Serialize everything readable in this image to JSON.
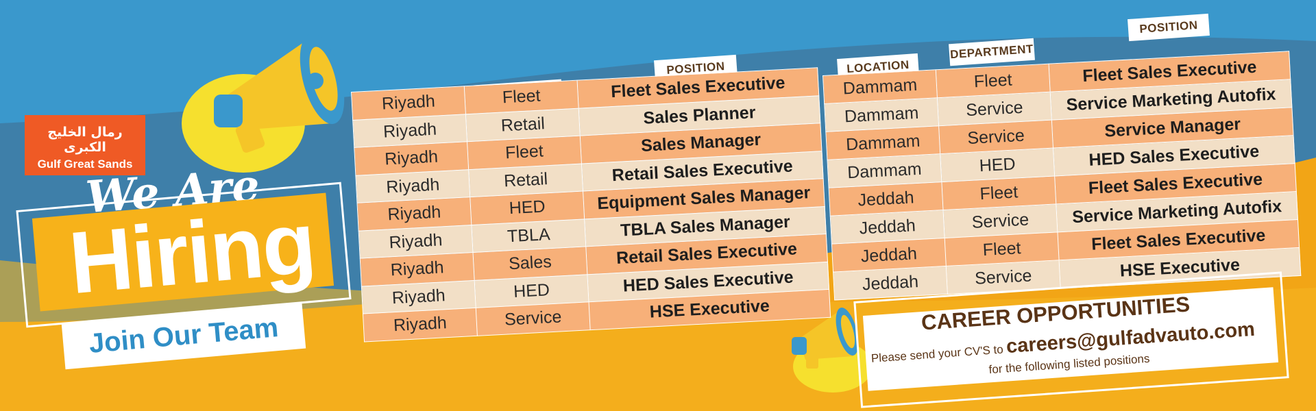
{
  "brand": {
    "logo_arabic": "رمال الخليج الكبرى",
    "logo_english": "Gulf Great Sands"
  },
  "headline": {
    "we_are": "We Are",
    "hiring": "Hiring",
    "join": "Join Our Team"
  },
  "table_headers": {
    "location": "LOCATION",
    "department": "DEPARTMENT",
    "position": "POSITION"
  },
  "table_left": [
    {
      "location": "Riyadh",
      "department": "Fleet",
      "position": "Fleet Sales Executive"
    },
    {
      "location": "Riyadh",
      "department": "Retail",
      "position": "Sales Planner"
    },
    {
      "location": "Riyadh",
      "department": "Fleet",
      "position": "Sales Manager"
    },
    {
      "location": "Riyadh",
      "department": "Retail",
      "position": "Retail Sales Executive"
    },
    {
      "location": "Riyadh",
      "department": "HED",
      "position": "Equipment Sales Manager"
    },
    {
      "location": "Riyadh",
      "department": "TBLA",
      "position": "TBLA Sales Manager"
    },
    {
      "location": "Riyadh",
      "department": "Sales",
      "position": "Retail Sales Executive"
    },
    {
      "location": "Riyadh",
      "department": "HED",
      "position": "HED Sales Executive"
    },
    {
      "location": "Riyadh",
      "department": "Service",
      "position": "HSE Executive"
    }
  ],
  "table_right": [
    {
      "location": "Dammam",
      "department": "Fleet",
      "position": "Fleet Sales Executive"
    },
    {
      "location": "Dammam",
      "department": "Service",
      "position": "Service Marketing Autofix"
    },
    {
      "location": "Dammam",
      "department": "Service",
      "position": "Service Manager"
    },
    {
      "location": "Dammam",
      "department": "HED",
      "position": "HED Sales Executive"
    },
    {
      "location": "Jeddah",
      "department": "Fleet",
      "position": "Fleet Sales Executive"
    },
    {
      "location": "Jeddah",
      "department": "Service",
      "position": "Service Marketing Autofix"
    },
    {
      "location": "Jeddah",
      "department": "Fleet",
      "position": "Fleet Sales Executive"
    },
    {
      "location": "Jeddah",
      "department": "Service",
      "position": "HSE Executive"
    }
  ],
  "career": {
    "title": "CAREER OPPORTUNITIES",
    "prefix": "Please send your CV'S to",
    "email": "careers@gulfadvauto.com",
    "sub": "for the following listed positions"
  },
  "colors": {
    "blue_dark": "#3e7fa9",
    "blue_light": "#3a98cc",
    "orange": "#f2a516",
    "row_light": "#f2dfc6",
    "row_peach": "#f7b079",
    "logo_red": "#ef5a25"
  },
  "icons": [
    "megaphone-icon"
  ]
}
